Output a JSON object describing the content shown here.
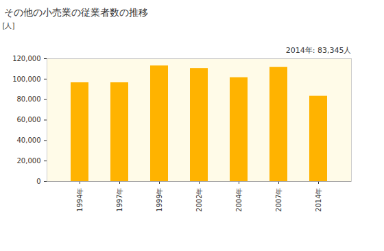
{
  "chart_data": {
    "type": "bar",
    "title": "その他の小売業の従業者数の推移",
    "ylabel": "[人]",
    "annotation": "2014年: 83,345人",
    "categories": [
      "1994年",
      "1997年",
      "1999年",
      "2002年",
      "2004年",
      "2007年",
      "2014年"
    ],
    "values": [
      96500,
      96500,
      113000,
      110500,
      101500,
      111500,
      83345
    ],
    "color": "#ffb300",
    "ylim": [
      0,
      120000
    ],
    "yticks": [
      0,
      {
        "value": 20000,
        "label": "20,000"
      },
      {
        "value": 40000,
        "label": "40,000"
      },
      {
        "value": 60000,
        "label": "60,000"
      },
      {
        "value": 80000,
        "label": "80,000"
      },
      {
        "value": 100000,
        "label": "100,000"
      },
      {
        "value": 120000,
        "label": "120,000"
      }
    ],
    "grid": false
  }
}
